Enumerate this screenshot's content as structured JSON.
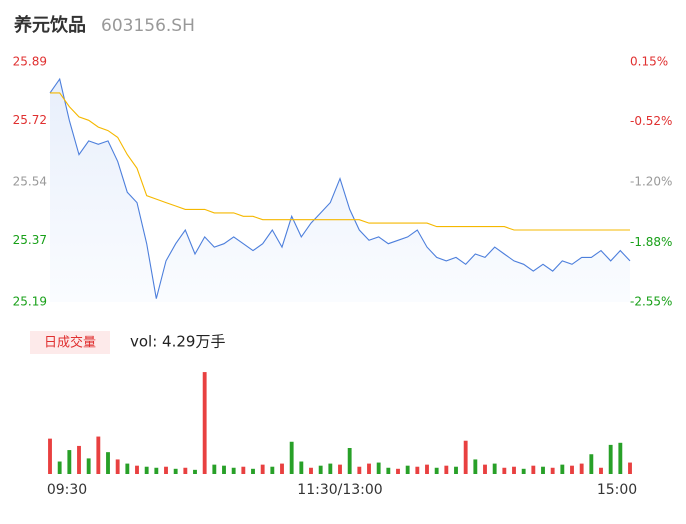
{
  "chart_data": [
    {
      "type": "line",
      "title": "养元饮品",
      "subtitle": "603156.SH",
      "categories": [
        "09:30",
        null,
        null,
        null,
        null,
        null,
        null,
        null,
        null,
        null,
        null,
        null,
        null,
        null,
        null,
        null,
        null,
        null,
        null,
        null,
        null,
        null,
        null,
        null,
        null,
        null,
        null,
        null,
        null,
        null,
        "11:30/13:00",
        null,
        null,
        null,
        null,
        null,
        null,
        null,
        null,
        null,
        null,
        null,
        null,
        null,
        null,
        null,
        null,
        null,
        null,
        null,
        null,
        null,
        null,
        null,
        null,
        null,
        null,
        null,
        null,
        null,
        "15:00"
      ],
      "series": [
        {
          "color": "#4d7fdc",
          "values": [
            25.8,
            25.84,
            25.72,
            25.62,
            25.66,
            25.65,
            25.66,
            25.6,
            25.51,
            25.48,
            25.36,
            25.2,
            25.31,
            25.36,
            25.4,
            25.33,
            25.38,
            25.35,
            25.36,
            25.38,
            25.36,
            25.34,
            25.36,
            25.4,
            25.35,
            25.44,
            25.38,
            25.42,
            25.45,
            25.48,
            25.55,
            25.46,
            25.4,
            25.37,
            25.38,
            25.36,
            25.37,
            25.38,
            25.4,
            25.35,
            25.32,
            25.31,
            25.32,
            25.3,
            25.33,
            25.32,
            25.35,
            25.33,
            25.31,
            25.3,
            25.28,
            25.3,
            25.28,
            25.31,
            25.3,
            25.32,
            25.32,
            25.34,
            25.31,
            25.34,
            25.31
          ]
        },
        {
          "color": "#f5b800",
          "values": [
            25.8,
            25.8,
            25.76,
            25.73,
            25.72,
            25.7,
            25.69,
            25.67,
            25.62,
            25.58,
            25.5,
            25.49,
            25.48,
            25.47,
            25.46,
            25.46,
            25.46,
            25.45,
            25.45,
            25.45,
            25.44,
            25.44,
            25.43,
            25.43,
            25.43,
            25.43,
            25.43,
            25.43,
            25.43,
            25.43,
            25.43,
            25.43,
            25.43,
            25.42,
            25.42,
            25.42,
            25.42,
            25.42,
            25.42,
            25.42,
            25.41,
            25.41,
            25.41,
            25.41,
            25.41,
            25.41,
            25.41,
            25.41,
            25.4,
            25.4,
            25.4,
            25.4,
            25.4,
            25.4,
            25.4,
            25.4,
            25.4,
            25.4,
            25.4,
            25.4,
            25.4
          ]
        }
      ],
      "ylim": [
        25.19,
        25.89
      ],
      "yticks": [
        25.89,
        25.72,
        25.54,
        25.37,
        25.19
      ],
      "ytick_colors": [
        "#e03030",
        "#e03030",
        "#999999",
        "#18a018",
        "#18a018"
      ],
      "y2lim": [
        -2.55,
        0.15
      ],
      "y2ticks": [
        {
          "value": 0.15,
          "label": "0.15%"
        },
        {
          "value": -0.52,
          "label": "-0.52%"
        },
        {
          "value": -1.2,
          "label": "-1.20%"
        },
        {
          "value": -1.88,
          "label": "-1.88%"
        },
        {
          "value": -2.55,
          "label": "-2.55%"
        }
      ],
      "y2tick_colors": [
        "#e03030",
        "#e03030",
        "#999999",
        "#18a018",
        "#18a018"
      ]
    },
    {
      "type": "bar",
      "title": "日成交量",
      "subtitle": "vol: 4.29万手",
      "ylim": [
        0,
        1000
      ],
      "values": [
        340,
        120,
        230,
        270,
        150,
        360,
        210,
        140,
        100,
        80,
        70,
        60,
        70,
        50,
        60,
        40,
        980,
        90,
        80,
        60,
        70,
        50,
        90,
        70,
        100,
        310,
        120,
        60,
        80,
        100,
        90,
        250,
        70,
        100,
        110,
        60,
        50,
        80,
        70,
        90,
        60,
        80,
        70,
        320,
        140,
        90,
        100,
        60,
        70,
        50,
        80,
        70,
        60,
        90,
        80,
        100,
        190,
        60,
        280,
        300,
        110
      ],
      "colors": [
        "#e84040",
        "#28a028",
        "#28a028",
        "#e84040",
        "#28a028",
        "#e84040",
        "#28a028",
        "#e84040",
        "#28a028",
        "#e84040",
        "#28a028",
        "#28a028",
        "#e84040",
        "#28a028",
        "#e84040",
        "#28a028",
        "#e84040",
        "#28a028",
        "#28a028",
        "#28a028",
        "#e84040",
        "#28a028",
        "#e84040",
        "#28a028",
        "#e84040",
        "#28a028",
        "#28a028",
        "#e84040",
        "#28a028",
        "#28a028",
        "#e84040",
        "#28a028",
        "#e84040",
        "#e84040",
        "#28a028",
        "#28a028",
        "#e84040",
        "#28a028",
        "#e84040",
        "#e84040",
        "#28a028",
        "#e84040",
        "#28a028",
        "#e84040",
        "#28a028",
        "#e84040",
        "#28a028",
        "#e84040",
        "#e84040",
        "#28a028",
        "#e84040",
        "#28a028",
        "#e84040",
        "#28a028",
        "#e84040",
        "#e84040",
        "#28a028",
        "#e84040",
        "#28a028",
        "#28a028",
        "#e84040"
      ]
    }
  ]
}
